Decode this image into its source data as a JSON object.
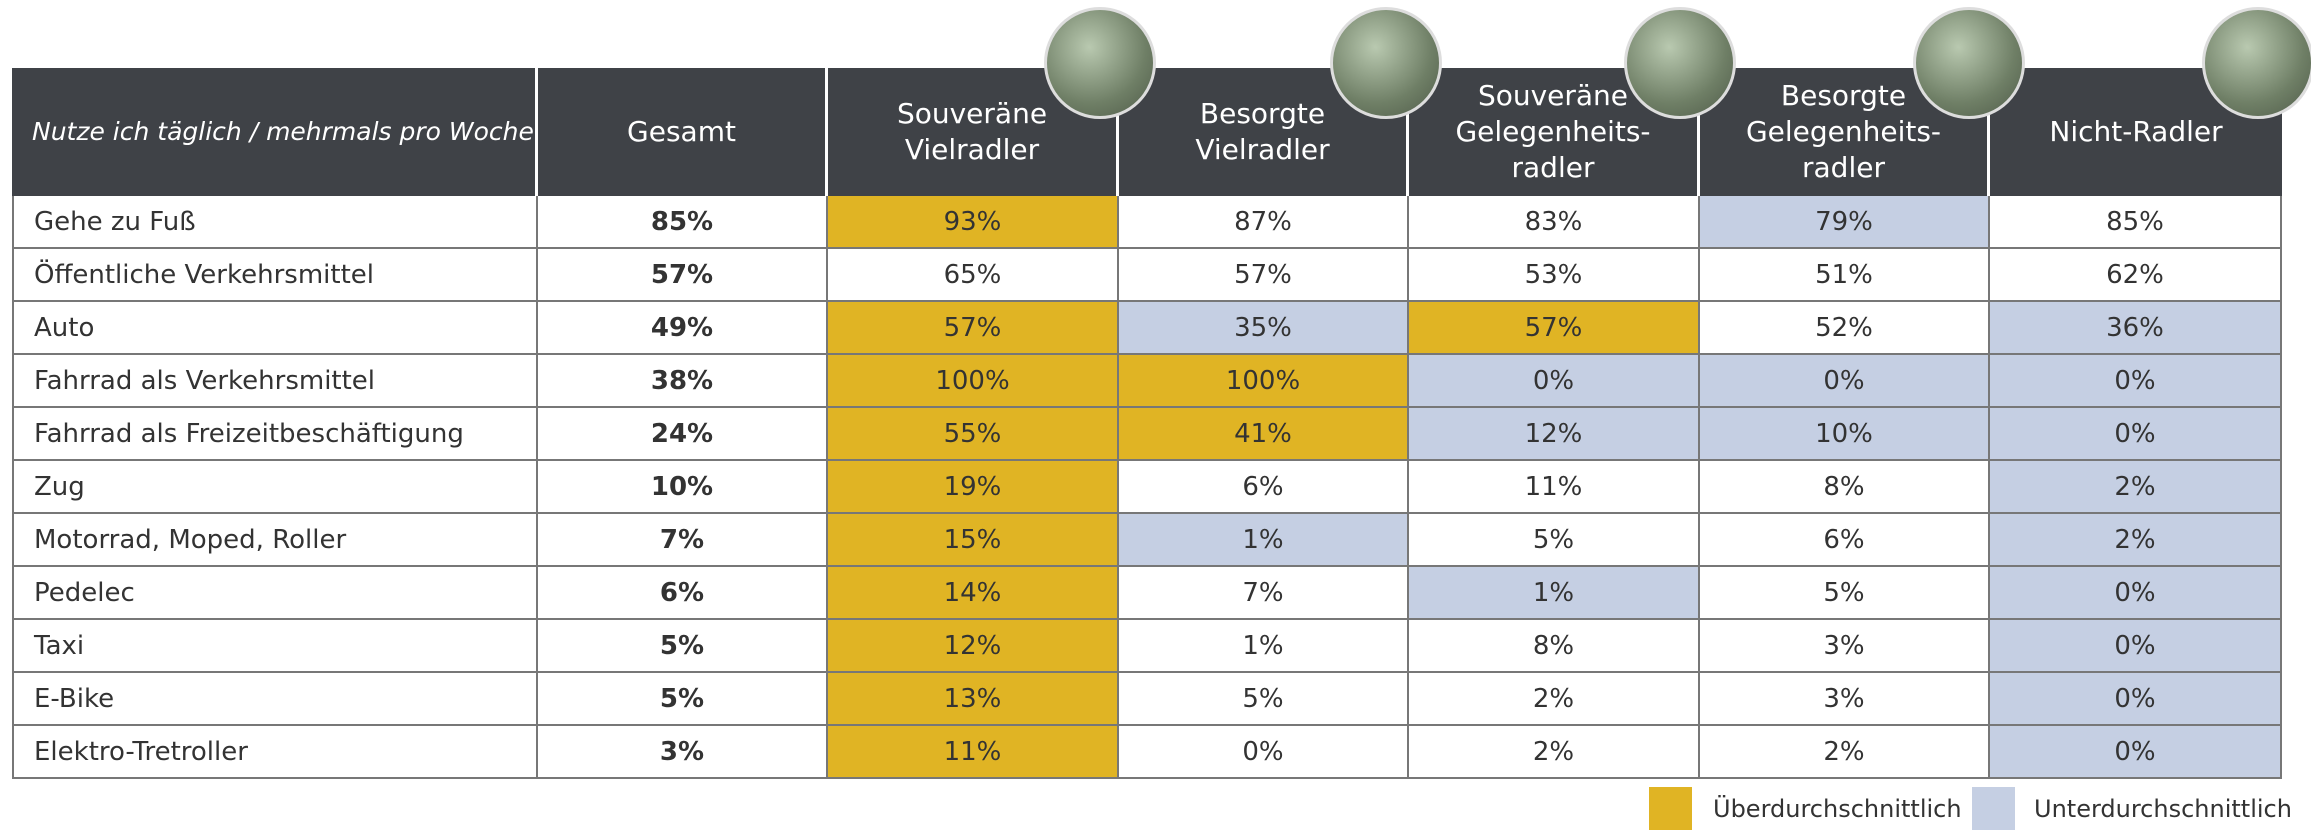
{
  "table": {
    "header": [
      "Nutze ich täglich / mehrmals pro Woche",
      "Gesamt",
      "Souveräne\nVielradler",
      "Besorgte\nVielradler",
      "Souveräne\nGelegenheits-\nradler",
      "Besorgte\nGelegenheits-\nradler",
      "Nicht-Radler"
    ],
    "rows": [
      {
        "cells": [
          "Gehe zu Fuß",
          "85%",
          "93%",
          "87%",
          "83%",
          "79%",
          "85%"
        ],
        "highlight": [
          null,
          null,
          0,
          null,
          null,
          1,
          null
        ]
      },
      {
        "cells": [
          "Öffentliche Verkehrsmittel",
          "57%",
          "65%",
          "57%",
          "53%",
          "51%",
          "62%"
        ],
        "highlight": [
          null,
          null,
          null,
          null,
          null,
          null,
          null
        ]
      },
      {
        "cells": [
          "Auto",
          "49%",
          "57%",
          "35%",
          "57%",
          "52%",
          "36%"
        ],
        "highlight": [
          null,
          null,
          0,
          1,
          0,
          null,
          1
        ]
      },
      {
        "cells": [
          "Fahrrad als Verkehrsmittel",
          "38%",
          "100%",
          "100%",
          "0%",
          "0%",
          "0%"
        ],
        "highlight": [
          null,
          null,
          0,
          0,
          1,
          1,
          1
        ]
      },
      {
        "cells": [
          "Fahrrad als Freizeitbeschäftigung",
          "24%",
          "55%",
          "41%",
          "12%",
          "10%",
          "0%"
        ],
        "highlight": [
          null,
          null,
          0,
          0,
          1,
          1,
          1
        ]
      },
      {
        "cells": [
          "Zug",
          "10%",
          "19%",
          "6%",
          "11%",
          "8%",
          "2%"
        ],
        "highlight": [
          null,
          null,
          0,
          null,
          null,
          null,
          1
        ]
      },
      {
        "cells": [
          "Motorrad, Moped, Roller",
          "7%",
          "15%",
          "1%",
          "5%",
          "6%",
          "2%"
        ],
        "highlight": [
          null,
          null,
          0,
          1,
          null,
          null,
          1
        ]
      },
      {
        "cells": [
          "Pedelec",
          "6%",
          "14%",
          "7%",
          "1%",
          "5%",
          "0%"
        ],
        "highlight": [
          null,
          null,
          0,
          null,
          1,
          null,
          1
        ]
      },
      {
        "cells": [
          "Taxi",
          "5%",
          "12%",
          "1%",
          "8%",
          "3%",
          "0%"
        ],
        "highlight": [
          null,
          null,
          0,
          null,
          null,
          null,
          1
        ]
      },
      {
        "cells": [
          "E-Bike",
          "5%",
          "13%",
          "5%",
          "2%",
          "3%",
          "0%"
        ],
        "highlight": [
          null,
          null,
          0,
          null,
          null,
          null,
          1
        ]
      },
      {
        "cells": [
          "Elektro-Tretroller",
          "3%",
          "11%",
          "0%",
          "2%",
          "2%",
          "0%"
        ],
        "highlight": [
          null,
          null,
          0,
          null,
          null,
          null,
          1
        ]
      }
    ]
  },
  "legend": {
    "items": [
      {
        "label": "Überdurchschnittlich",
        "color": "#e0b424"
      },
      {
        "label": "Unterdurchschnittlich",
        "color": "#c5cfe3"
      }
    ]
  }
}
